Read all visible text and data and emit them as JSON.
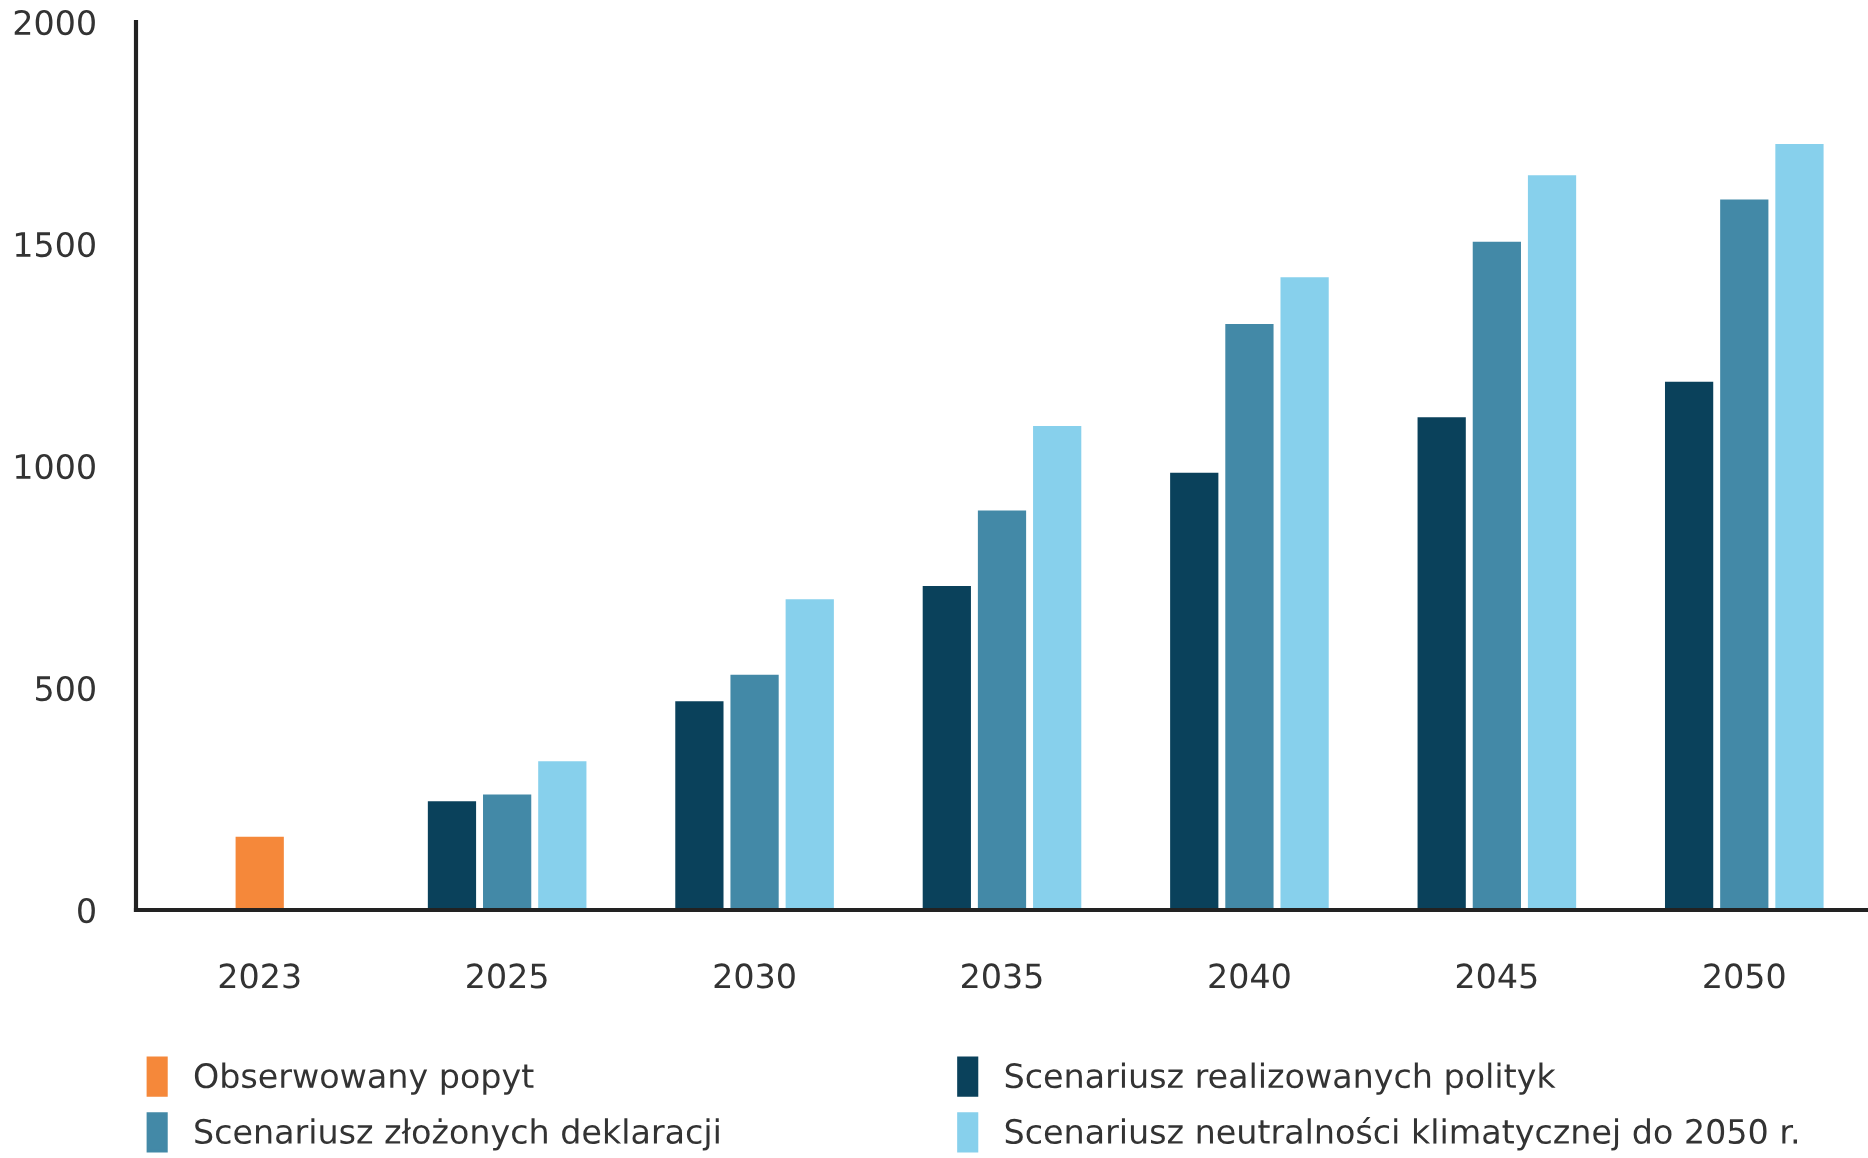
{
  "chart_data": {
    "type": "bar",
    "categories": [
      "2023",
      "2025",
      "2030",
      "2035",
      "2040",
      "2045",
      "2050"
    ],
    "series": [
      {
        "name": "Obserwowany popyt",
        "color": "#f5883a",
        "values": [
          165,
          null,
          null,
          null,
          null,
          null,
          null
        ]
      },
      {
        "name": "Scenariusz realizowanych polityk",
        "color": "#0a415b",
        "values": [
          null,
          245,
          470,
          730,
          985,
          1110,
          1190
        ]
      },
      {
        "name": "Scenariusz złożonych deklaracji",
        "color": "#4389a7",
        "values": [
          null,
          260,
          530,
          900,
          1320,
          1505,
          1600
        ]
      },
      {
        "name": "Scenariusz neutralności klimatycznej do 2050 r.",
        "color": "#87d0ec",
        "values": [
          null,
          335,
          700,
          1090,
          1425,
          1655,
          1725
        ]
      }
    ],
    "ylim": [
      0,
      2000
    ],
    "yticks": [
      0,
      500,
      1000,
      1500,
      2000
    ],
    "grid": false,
    "legend": "bottom"
  }
}
